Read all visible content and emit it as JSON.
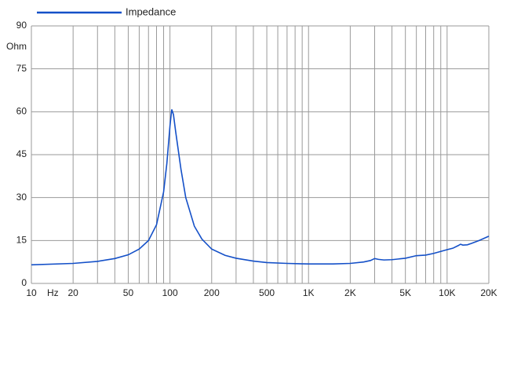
{
  "chart_data": {
    "type": "line",
    "log_x": true,
    "grid": true,
    "y_label": "Ohm",
    "x_label": "Hz",
    "xlim": [
      10,
      20000
    ],
    "ylim": [
      0,
      90
    ],
    "yticks": [
      0,
      15,
      30,
      45,
      60,
      75,
      90
    ],
    "xticks": [
      10,
      20,
      50,
      100,
      200,
      500,
      {
        "value": 1000,
        "label": "1K"
      },
      {
        "value": 2000,
        "label": "2K"
      },
      {
        "value": 5000,
        "label": "5K"
      },
      {
        "value": 10000,
        "label": "10K"
      },
      {
        "value": 20000,
        "label": "20K"
      }
    ],
    "xgrid": [
      10,
      20,
      30,
      40,
      50,
      60,
      70,
      80,
      90,
      100,
      200,
      300,
      400,
      500,
      600,
      700,
      800,
      900,
      1000,
      2000,
      3000,
      4000,
      5000,
      6000,
      7000,
      8000,
      9000,
      10000,
      20000
    ],
    "series": [
      {
        "name": "Impedance",
        "color": "#1450c8",
        "x": [
          10,
          20,
          30,
          40,
          50,
          60,
          70,
          80,
          90,
          95,
          100,
          103,
          106,
          110,
          120,
          130,
          150,
          170,
          200,
          250,
          300,
          400,
          500,
          700,
          1000,
          1500,
          2000,
          2500,
          2800,
          3000,
          3200,
          3500,
          4000,
          5000,
          6000,
          7000,
          8000,
          10000,
          11000,
          12000,
          12500,
          13000,
          14000,
          15000,
          17000,
          20000
        ],
        "values": [
          6.5,
          7.0,
          7.7,
          8.7,
          10.0,
          12.0,
          15.0,
          20.5,
          32,
          42,
          55,
          60.8,
          59,
          53,
          40,
          30,
          20,
          15.5,
          12,
          9.8,
          8.8,
          7.8,
          7.3,
          7.0,
          6.8,
          6.8,
          7.0,
          7.5,
          8.0,
          8.7,
          8.4,
          8.2,
          8.3,
          8.8,
          9.7,
          9.9,
          10.5,
          11.8,
          12.3,
          13.2,
          13.7,
          13.4,
          13.5,
          14.0,
          15.0,
          16.5
        ]
      }
    ]
  }
}
